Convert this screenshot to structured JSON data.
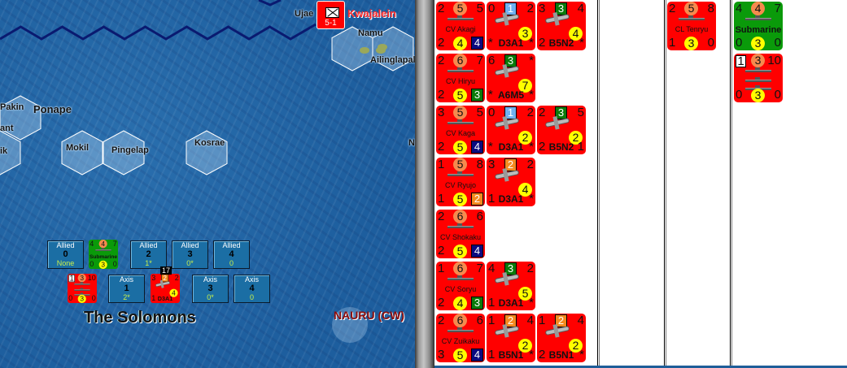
{
  "map": {
    "title": "The Solomons",
    "labels": {
      "ujae": "Ujae",
      "kwajalein": "Kwajalein",
      "namu": "Namu",
      "ailinglapalap": "Ailinglapalap",
      "pakin": "Pakin",
      "ponape": "Ponape",
      "ant": "ant",
      "ik": "ik",
      "mokil": "Mokil",
      "pingelap": "Pingelap",
      "kosrae": "Kosrae",
      "ni": "Ni",
      "nauru": "NAURU (CW)"
    },
    "kwajalein_unit": {
      "value": "5-1"
    },
    "allied_boxes": [
      {
        "side": "Allied",
        "num": "0",
        "val": "None"
      },
      {
        "side": "Allied",
        "num": "2",
        "val": "1*"
      },
      {
        "side": "Allied",
        "num": "3",
        "val": "0*"
      },
      {
        "side": "Allied",
        "num": "4",
        "val": "0"
      }
    ],
    "axis_boxes": [
      {
        "side": "Axis",
        "num": "1",
        "val": "2*"
      },
      {
        "side": "Axis",
        "num": "3",
        "val": "0*"
      },
      {
        "side": "Axis",
        "num": "4",
        "val": "0"
      }
    ],
    "stack_tag": "17",
    "allied_counter": {
      "type": "ship",
      "color": "green",
      "name": "Submarine",
      "tl": "4",
      "top": "4",
      "tr": "7",
      "bl": "0",
      "bot": "3",
      "br": "0"
    },
    "axis_group_counter": {
      "type": "group",
      "flag": "1",
      "top": "3",
      "tr": "10",
      "bl": "0",
      "bot": "3",
      "br": "0"
    },
    "axis_air_counter": {
      "type": "air",
      "name": "D3A1",
      "tl": "3",
      "top": "2",
      "top_color": "#f58a1e",
      "tr": "2",
      "mid": "4",
      "bl": "1",
      "br": ""
    }
  },
  "colors": {
    "navy": "#0a0a80",
    "green": "#0a7a0a",
    "orange": "#f58a1e",
    "lightblue": "#6fb0f0",
    "counter_red": "#ff0000",
    "counter_green": "#0a9a0a"
  },
  "panel": {
    "column1": [
      [
        {
          "type": "ship",
          "name": "CV Akagi",
          "tl": "2",
          "top": "5",
          "tr": "5",
          "bl": "2",
          "bot": "4",
          "br": "4",
          "br_color": "#0a0a80"
        },
        {
          "type": "air",
          "name": "D3A1",
          "tl": "0",
          "top": "1",
          "top_color": "#6fb0f0",
          "tr": "2",
          "mid": "3",
          "bl": "*",
          "br": "*"
        },
        {
          "type": "air",
          "name": "B5N2",
          "tl": "3",
          "top": "3",
          "top_color": "#0a7a0a",
          "tr": "4",
          "mid": "4",
          "bl": "2",
          "br": "*"
        }
      ],
      [
        {
          "type": "ship",
          "name": "CV Hiryu",
          "tl": "2",
          "top": "6",
          "tr": "7",
          "bl": "2",
          "bot": "5",
          "br": "3",
          "br_color": "#0a7a0a"
        },
        {
          "type": "air",
          "name": "A6M5",
          "tl": "6",
          "top": "3",
          "top_color": "#0a7a0a",
          "tr": "*",
          "mid": "7",
          "bl": "*",
          "br": "*"
        }
      ],
      [
        {
          "type": "ship",
          "name": "CV Kaga",
          "tl": "3",
          "top": "5",
          "tr": "5",
          "bl": "2",
          "bot": "5",
          "br": "4",
          "br_color": "#0a0a80"
        },
        {
          "type": "air",
          "name": "D3A1",
          "tl": "0",
          "top": "1",
          "top_color": "#6fb0f0",
          "tr": "2",
          "mid": "2",
          "bl": "*",
          "br": "*"
        },
        {
          "type": "air",
          "name": "B5N2",
          "tl": "2",
          "top": "3",
          "top_color": "#0a7a0a",
          "tr": "5",
          "mid": "2",
          "bl": "2",
          "br": "1"
        }
      ],
      [
        {
          "type": "ship",
          "name": "CV Ryujo",
          "tl": "1",
          "top": "5",
          "tr": "8",
          "bl": "1",
          "bot": "5",
          "br": "2",
          "br_color": "#f58a1e"
        },
        {
          "type": "air",
          "name": "D3A1",
          "tl": "3",
          "top": "2",
          "top_color": "#f58a1e",
          "tr": "2",
          "mid": "4",
          "bl": "1",
          "br": "*"
        }
      ],
      [
        {
          "type": "ship",
          "name": "CV Shokaku",
          "tl": "2",
          "top": "6",
          "tr": "6",
          "bl": "2",
          "bot": "5",
          "br": "4",
          "br_color": "#0a0a80"
        }
      ],
      [
        {
          "type": "ship",
          "name": "CV Soryu",
          "tl": "1",
          "top": "6",
          "tr": "7",
          "bl": "2",
          "bot": "4",
          "br": "3",
          "br_color": "#0a7a0a"
        },
        {
          "type": "air",
          "name": "D3A1",
          "tl": "4",
          "top": "3",
          "top_color": "#0a7a0a",
          "tr": "2",
          "mid": "5",
          "bl": "1",
          "br": "*"
        }
      ],
      [
        {
          "type": "ship",
          "name": "CV Zuikaku",
          "tl": "2",
          "top": "6",
          "tr": "6",
          "bl": "3",
          "bot": "5",
          "br": "4",
          "br_color": "#0a0a80"
        },
        {
          "type": "air",
          "name": "B5N1",
          "tl": "1",
          "top": "2",
          "top_color": "#f58a1e",
          "tr": "4",
          "mid": "2",
          "bl": "1",
          "br": "*"
        },
        {
          "type": "air",
          "name": "B5N1",
          "tl": "1",
          "top": "2",
          "top_color": "#f58a1e",
          "tr": "4",
          "mid": "2",
          "bl": "2",
          "br": "*"
        }
      ]
    ],
    "column3": [
      [
        {
          "type": "ship",
          "name": "CL Tenryu",
          "tl": "2",
          "top": "5",
          "tr": "8",
          "bl": "1",
          "bot": "3",
          "br": "0"
        }
      ]
    ],
    "column4": [
      [
        {
          "type": "ship",
          "color": "green",
          "name": "Submarine",
          "tl": "4",
          "top": "4",
          "tr": "7",
          "bl": "0",
          "bot": "3",
          "br": "0"
        }
      ],
      [
        {
          "type": "group",
          "flag": "1",
          "top": "3",
          "tr": "10",
          "bl": "0",
          "bot": "3",
          "br": "0"
        }
      ]
    ]
  }
}
